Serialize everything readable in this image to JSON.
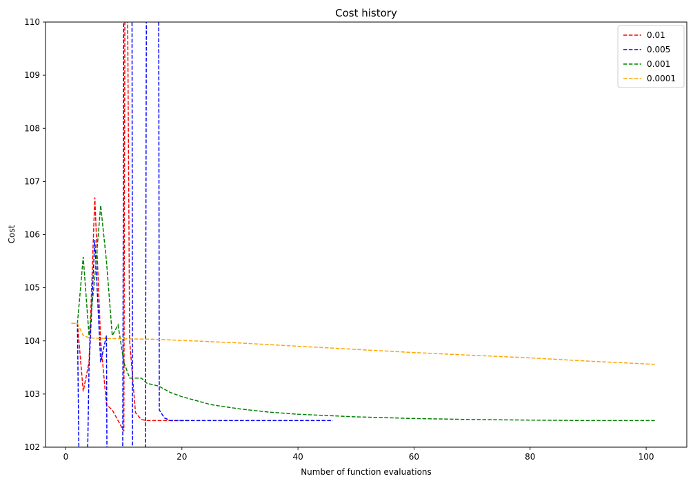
{
  "chart_data": {
    "type": "line",
    "title": "Cost history",
    "xlabel": "Number of function evaluations",
    "ylabel": "Cost",
    "xlim": [
      -3.5,
      107
    ],
    "ylim": [
      102,
      110
    ],
    "x_ticks": [
      0,
      20,
      40,
      60,
      80,
      100
    ],
    "y_ticks": [
      102,
      103,
      104,
      105,
      106,
      107,
      108,
      109,
      110
    ],
    "grid": false,
    "legend_position": "top-right",
    "line_style": "dashed",
    "series": [
      {
        "name": "0.01",
        "color": "#ff0000",
        "points": [
          [
            1,
            104.33
          ],
          [
            2,
            104.33
          ],
          [
            3,
            103.05
          ],
          [
            4,
            103.6
          ],
          [
            5,
            106.7
          ],
          [
            6,
            104.0
          ],
          [
            7,
            102.8
          ],
          [
            8,
            102.7
          ],
          [
            9,
            102.5
          ],
          [
            10,
            102.3
          ],
          [
            10.2,
            111
          ],
          [
            10.6,
            111
          ],
          [
            11,
            104.0
          ],
          [
            12,
            102.65
          ],
          [
            13,
            102.52
          ],
          [
            14,
            102.5
          ],
          [
            16,
            102.5
          ],
          [
            18,
            102.5
          ],
          [
            20,
            102.5
          ],
          [
            21,
            102.5
          ]
        ]
      },
      {
        "name": "0.005",
        "color": "#0000ff",
        "points": [
          [
            1,
            104.33
          ],
          [
            2,
            104.33
          ],
          [
            2.3,
            101.5
          ],
          [
            3.7,
            101.5
          ],
          [
            4,
            103.5
          ],
          [
            5,
            105.9
          ],
          [
            6,
            103.6
          ],
          [
            7,
            104.1
          ],
          [
            7.1,
            101.5
          ],
          [
            9.8,
            101.5
          ],
          [
            10,
            111
          ],
          [
            11.4,
            111
          ],
          [
            11.5,
            101.5
          ],
          [
            13.7,
            101.5
          ],
          [
            13.9,
            111
          ],
          [
            16,
            111
          ],
          [
            16.1,
            102.7
          ],
          [
            17,
            102.55
          ],
          [
            18,
            102.5
          ],
          [
            20,
            102.5
          ],
          [
            25,
            102.5
          ],
          [
            30,
            102.5
          ],
          [
            35,
            102.5
          ],
          [
            40,
            102.5
          ],
          [
            46,
            102.5
          ]
        ]
      },
      {
        "name": "0.001",
        "color": "#008000",
        "points": [
          [
            1,
            104.33
          ],
          [
            2,
            104.33
          ],
          [
            3,
            105.58
          ],
          [
            4,
            104.1
          ],
          [
            5,
            105.2
          ],
          [
            6,
            106.55
          ],
          [
            7,
            105.5
          ],
          [
            8,
            104.1
          ],
          [
            9,
            104.3
          ],
          [
            10,
            103.6
          ],
          [
            11,
            103.3
          ],
          [
            12,
            103.3
          ],
          [
            13,
            103.3
          ],
          [
            14,
            103.2
          ],
          [
            16,
            103.15
          ],
          [
            18,
            103.03
          ],
          [
            20,
            102.95
          ],
          [
            25,
            102.8
          ],
          [
            30,
            102.72
          ],
          [
            35,
            102.66
          ],
          [
            40,
            102.62
          ],
          [
            50,
            102.57
          ],
          [
            60,
            102.54
          ],
          [
            70,
            102.52
          ],
          [
            80,
            102.51
          ],
          [
            90,
            102.5
          ],
          [
            101.5,
            102.5
          ]
        ]
      },
      {
        "name": "0.0001",
        "color": "#ffa500",
        "points": [
          [
            1,
            104.33
          ],
          [
            2,
            104.33
          ],
          [
            3,
            104.1
          ],
          [
            4,
            104.06
          ],
          [
            5,
            104.05
          ],
          [
            10,
            104.04
          ],
          [
            15,
            104.03
          ],
          [
            20,
            104.01
          ],
          [
            30,
            103.96
          ],
          [
            40,
            103.9
          ],
          [
            50,
            103.84
          ],
          [
            60,
            103.78
          ],
          [
            70,
            103.73
          ],
          [
            80,
            103.68
          ],
          [
            90,
            103.62
          ],
          [
            101.5,
            103.56
          ]
        ]
      }
    ]
  }
}
